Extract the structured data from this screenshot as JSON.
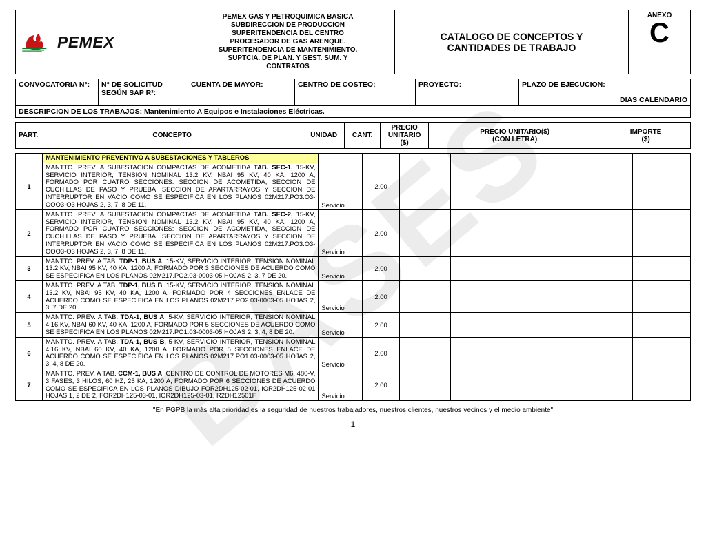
{
  "watermark": "BASES",
  "logo_text": "PEMEX",
  "org_lines": [
    "PEMEX GAS Y PETROQUIMICA BASICA",
    "SUBDIRECCION DE PRODUCCION",
    "SUPERITENDENCIA DEL CENTRO",
    "PROCESADOR DE GAS ARENQUE.",
    "SUPERITENDENCIA DE MANTENIMIENTO.",
    "SUPTCIA. DE PLAN. Y GEST. SUM. Y",
    "CONTRATOS"
  ],
  "catalog_title_line1": "CATALOGO DE CONCEPTOS Y",
  "catalog_title_line2": "CANTIDADES DE TRABAJO",
  "anexo_label": "ANEXO",
  "anexo_letter": "C",
  "form": {
    "convocatoria": "CONVOCATORIA N°:",
    "solicitud_line1": "N° DE SOLICITUD",
    "solicitud_line2": "SEGÚN SAP R³:",
    "cuenta": "CUENTA DE MAYOR:",
    "centro": "CENTRO DE COSTEO:",
    "proyecto": "PROYECTO:",
    "plazo": "PLAZO DE EJECUCION:",
    "dias": "DIAS CALENDARIO",
    "descripcion_label": "DESCRIPCION DE LOS TRABAJOS: ",
    "descripcion_text": "Mantenimiento A Equipos e Instalaciones Eléctricas."
  },
  "cols": {
    "part": "PART.",
    "concepto": "CONCEPTO",
    "unidad": "UNIDAD",
    "cant": "CANT.",
    "pu_line1": "PRECIO",
    "pu_line2": "UNITARIO",
    "pu_line3": "($)",
    "pul_line1": "PRECIO UNITARIO($)",
    "pul_line2": "(CON LETRA)",
    "importe_line1": "IMPORTE",
    "importe_line2": "($)"
  },
  "section_title": "MANTENIMIENTO PREVENTIVO A SUBESTACIONES Y TABLEROS",
  "rows": [
    {
      "part": "1",
      "lead": "MANTTO. PREV. A SUBESTACION COMPACTAS DE ACOMETIDA ",
      "bold": "TAB. SEC-1,",
      "rest": " 15-KV, SERVICIO INTERIOR, TENSION NOMINAL 13.2 KV, NBAI 95 KV, 40 KA, 1200 A, FORMADO  POR CUATRO SECCIONES: SECCION DE ACOMETIDA, SECCION DE CUCHILLAS DE PASO Y PRUEBA, SECCION DE APARTARRAYOS Y SECCION DE INTERRUPTOR EN VACIO COMO SE ESPECIFICA EN LOS PLANOS 02M217.PO3.O3-OOO3-O3 HOJAS 2, 3, 7, 8 DE 11.",
      "unidad": "Servicio",
      "cant": "2.00"
    },
    {
      "part": "2",
      "lead": "MANTTO. PREV. A SUBESTACION COMPACTAS DE ACOMETIDA ",
      "bold": "TAB. SEC-2,",
      "rest": " 15-KV, SERVICIO INTERIOR, TENSION NOMINAL 13.2 KV, NBAI 95 KV, 40 KA, 1200 A, FORMADO  POR CUATRO SECCIONES: SECCION DE ACOMETIDA, SECCION DE CUCHILLAS DE PASO Y PRUEBA, SECCION DE APARTARRAYOS Y SECCION DE INTERRUPTOR EN VACIO COMO SE ESPECIFICA EN LOS PLANOS 02M217.PO3.O3-OOO3-O3 HOJAS 2, 3, 7, 8 DE 11.",
      "unidad": "Servicio",
      "cant": "2.00"
    },
    {
      "part": "3",
      "lead": "MANTTO. PREV. A TAB. ",
      "bold": "TDP-1, BUS A",
      "rest": ", 15-KV, SERVICIO INTERIOR, TENSION NOMINAL 13.2 KV, NBAI 95 KV, 40 KA, 1200 A, FORMADO POR 3 SECCIONES DE ACUERDO COMO SE ESPECIFICA EN LOS PLANOS 02M217.PO2.03-0003-05 HOJAS 2, 3, 7 DE 20.",
      "unidad": "Servicio",
      "cant": "2.00"
    },
    {
      "part": "4",
      "lead": "MANTTO. PREV. A TAB. ",
      "bold": "TDP-1, BUS B",
      "rest": ", 15-KV, SERVICIO INTERIOR, TENSION NOMINAL 13.2 KV, NBAI 95 KV, 40 KA, 1200 A, FORMADO POR 4 SECCIONES ENLACE DE ACUERDO COMO SE ESPECIFICA EN LOS PLANOS 02M217.PO2.03-0003-05 HOJAS 2, 3, 7 DE 20.",
      "unidad": "Servicio",
      "cant": "2.00"
    },
    {
      "part": "5",
      "lead": "MANTTO. PREV. A TAB. ",
      "bold": "TDA-1, BUS A",
      "rest": ", 5-KV, SERVICIO INTERIOR, TENSION NOMINAL 4.16 KV, NBAI 60 KV, 40 KA, 1200 A,  FORMADO POR 5 SECCIONES DE ACUERDO COMO SE ESPECIFICA EN LOS PLANOS 02M217.PO1.03-0003-05 HOJAS 2, 3, 4, 8 DE 20.",
      "unidad": "Servicio",
      "cant": "2.00"
    },
    {
      "part": "6",
      "lead": "MANTTO. PREV. A TAB. ",
      "bold": "TDA-1, BUS B",
      "rest": ", 5-KV, SERVICIO INTERIOR, TENSION NOMINAL 4.16 KV, NBAI 60 KV, 40 KA, 1200 A,  FORMADO POR 5 SECCIONES ENLACE DE ACUERDO COMO SE ESPECIFICA EN LOS PLANOS 02M217.PO1.03-0003-05 HOJAS 2, 3, 4, 8 DE 20.",
      "unidad": "Servicio",
      "cant": "2.00"
    },
    {
      "part": "7",
      "lead": "MANTTO. PREV. A TAB. ",
      "bold": "CCM-1, BUS A",
      "rest": ", CENTRO DE CONTROL DE MOTORES M6, 480-V, 3 FASES, 3 HILOS, 60 HZ, 25 KA, 1200 A, FORMADO POR 6 SECCIONES DE ACUERDO COMO SE ESPECIFICA EN LOS PLANOS DIBUJO FOR2DH125-02-01, IOR2DH125-02-01 HOJAS 1, 2 DE 2, FOR2DH125-03-01, IOR2DH125-03-01, R2DH12501F",
      "unidad": "Servicio",
      "cant": "2.00"
    }
  ],
  "footer_quote": "\"En PGPB la más alta prioridad es la seguridad de nuestros trabajadores, nuestros clientes, nuestros vecinos y el medio ambiente\"",
  "page_number": "1"
}
